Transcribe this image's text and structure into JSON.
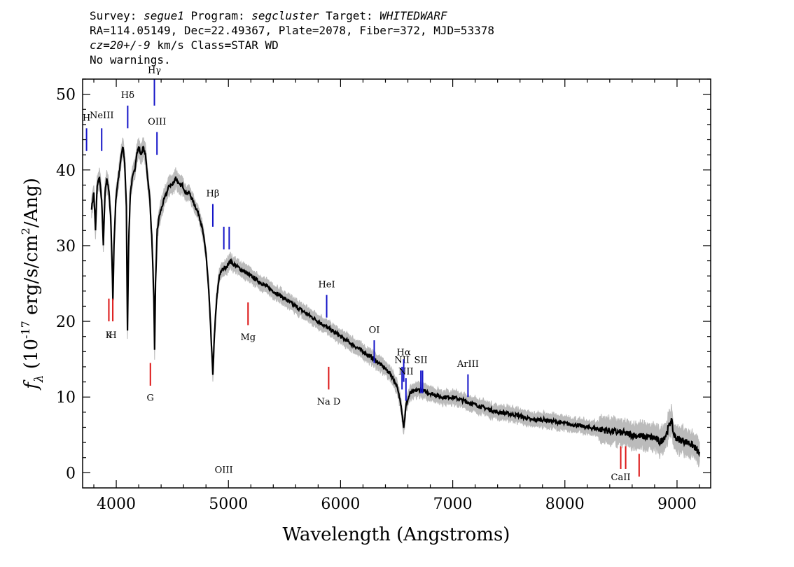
{
  "header": {
    "survey_label": "Survey:",
    "survey": "segue1",
    "program_label": "Program:",
    "program": "segcluster",
    "target_label": "Target:",
    "target": "WHITEDWARF",
    "line2": "RA=114.05149, Dec=22.49367, Plate=2078, Fiber=372, MJD=53378",
    "cz_label": "cz=20+/-9",
    "cz_rest": " km/s Class=STAR WD",
    "line4": "No warnings."
  },
  "chart_data": {
    "type": "line",
    "title": "",
    "xlabel": "Wavelength (Angstroms)",
    "ylabel_prefix": "f",
    "ylabel_sub": "λ",
    "ylabel_main": " (10",
    "ylabel_exp": "-17",
    "ylabel_rest": " erg/s/cm",
    "ylabel_exp2": "2",
    "ylabel_end": "/Ang)",
    "xlim": [
      3700,
      9300
    ],
    "ylim": [
      -2,
      52
    ],
    "xticks": [
      4000,
      5000,
      6000,
      7000,
      8000,
      9000
    ],
    "yticks": [
      0,
      10,
      20,
      30,
      40,
      50
    ],
    "xtick_labels": [
      "4000",
      "5000",
      "6000",
      "7000",
      "8000",
      "9000"
    ],
    "ytick_labels": [
      "0",
      "10",
      "20",
      "30",
      "40",
      "50"
    ],
    "grid": false,
    "colors": {
      "flux": "#000000",
      "error": "#bbbbbb",
      "emission": "#1414c8",
      "absorption": "#dc1414"
    },
    "spectrum": [
      [
        3780,
        35
      ],
      [
        3800,
        37
      ],
      [
        3815,
        32
      ],
      [
        3830,
        38
      ],
      [
        3850,
        39
      ],
      [
        3870,
        36
      ],
      [
        3885,
        30
      ],
      [
        3900,
        37
      ],
      [
        3915,
        39
      ],
      [
        3935,
        37
      ],
      [
        3950,
        34
      ],
      [
        3962,
        28
      ],
      [
        3970,
        23
      ],
      [
        3980,
        30
      ],
      [
        3995,
        36
      ],
      [
        4010,
        38
      ],
      [
        4030,
        40
      ],
      [
        4045,
        42
      ],
      [
        4060,
        43
      ],
      [
        4075,
        41
      ],
      [
        4090,
        35
      ],
      [
        4100,
        19
      ],
      [
        4110,
        30
      ],
      [
        4125,
        37
      ],
      [
        4145,
        39
      ],
      [
        4165,
        40
      ],
      [
        4180,
        42
      ],
      [
        4200,
        43
      ],
      [
        4220,
        42
      ],
      [
        4240,
        43
      ],
      [
        4260,
        42
      ],
      [
        4280,
        39
      ],
      [
        4300,
        36
      ],
      [
        4320,
        30
      ],
      [
        4335,
        23
      ],
      [
        4342,
        16
      ],
      [
        4350,
        25
      ],
      [
        4365,
        32
      ],
      [
        4385,
        34
      ],
      [
        4405,
        35
      ],
      [
        4425,
        36
      ],
      [
        4450,
        37
      ],
      [
        4475,
        38
      ],
      [
        4500,
        38
      ],
      [
        4530,
        39
      ],
      [
        4560,
        38
      ],
      [
        4590,
        38
      ],
      [
        4620,
        37
      ],
      [
        4650,
        37
      ],
      [
        4680,
        36
      ],
      [
        4710,
        35
      ],
      [
        4740,
        34
      ],
      [
        4770,
        32
      ],
      [
        4800,
        29
      ],
      [
        4825,
        24
      ],
      [
        4845,
        18
      ],
      [
        4861,
        13
      ],
      [
        4875,
        18
      ],
      [
        4895,
        23
      ],
      [
        4920,
        26
      ],
      [
        4950,
        27
      ],
      [
        4980,
        27
      ],
      [
        5010,
        28
      ],
      [
        5050,
        27.5
      ],
      [
        5100,
        27
      ],
      [
        5150,
        26.5
      ],
      [
        5200,
        26
      ],
      [
        5300,
        25
      ],
      [
        5400,
        24
      ],
      [
        5500,
        23
      ],
      [
        5600,
        22
      ],
      [
        5700,
        21
      ],
      [
        5800,
        20
      ],
      [
        5900,
        19
      ],
      [
        6000,
        18
      ],
      [
        6100,
        17
      ],
      [
        6200,
        16
      ],
      [
        6300,
        15
      ],
      [
        6380,
        14
      ],
      [
        6450,
        13
      ],
      [
        6500,
        11.5
      ],
      [
        6540,
        9
      ],
      [
        6563,
        6
      ],
      [
        6585,
        9
      ],
      [
        6620,
        10.5
      ],
      [
        6700,
        11
      ],
      [
        6800,
        10.5
      ],
      [
        6900,
        10
      ],
      [
        7000,
        10
      ],
      [
        7100,
        9.5
      ],
      [
        7200,
        9
      ],
      [
        7300,
        8.5
      ],
      [
        7400,
        8
      ],
      [
        7500,
        7.8
      ],
      [
        7600,
        7.5
      ],
      [
        7700,
        7
      ],
      [
        7800,
        7
      ],
      [
        7900,
        6.8
      ],
      [
        8000,
        6.5
      ],
      [
        8100,
        6.3
      ],
      [
        8200,
        6
      ],
      [
        8300,
        5.8
      ],
      [
        8400,
        5.5
      ],
      [
        8500,
        5.3
      ],
      [
        8600,
        5
      ],
      [
        8700,
        4.8
      ],
      [
        8800,
        4.6
      ],
      [
        8850,
        4
      ],
      [
        8900,
        5
      ],
      [
        8950,
        7
      ],
      [
        8970,
        5
      ],
      [
        9000,
        4.5
      ],
      [
        9100,
        4
      ],
      [
        9150,
        3.5
      ],
      [
        9200,
        2.5
      ]
    ],
    "emission_lines": [
      {
        "label": "H",
        "x": 3735,
        "y_low": 42.5,
        "y_high": 45.5,
        "label_y": 46.5
      },
      {
        "label": "NeIII",
        "x": 3870,
        "y_low": 42.5,
        "y_high": 45.5,
        "label_y": 46.8
      },
      {
        "label": "Hδ",
        "x": 4102,
        "y_low": 45.5,
        "y_high": 48.5,
        "label_y": 49.5
      },
      {
        "label": "Hγ",
        "x": 4340,
        "y_low": 48.5,
        "y_high": 52,
        "label_y": 52.8
      },
      {
        "label": "OIII",
        "x": 4363,
        "y_low": 42,
        "y_high": 45,
        "label_y": 46
      },
      {
        "label": "Hβ",
        "x": 4861,
        "y_low": 32.5,
        "y_high": 35.5,
        "label_y": 36.5
      },
      {
        "label": "OIII",
        "x": 4959,
        "y_low": 29.5,
        "y_high": 32.5,
        "label_y": 0
      },
      {
        "label": "",
        "x": 5007,
        "y_low": 29.5,
        "y_high": 32.5,
        "label_y": 0
      },
      {
        "label": "HeI",
        "x": 5876,
        "y_low": 20.5,
        "y_high": 23.5,
        "label_y": 24.5
      },
      {
        "label": "OI",
        "x": 6300,
        "y_low": 14.5,
        "y_high": 17.5,
        "label_y": 18.5
      },
      {
        "label": "NII",
        "x": 6548,
        "y_low": 11,
        "y_high": 14,
        "label_y": 14.5
      },
      {
        "label": "Hα",
        "x": 6563,
        "y_low": 12,
        "y_high": 15,
        "label_y": 15.5
      },
      {
        "label": "NII",
        "x": 6583,
        "y_low": 9.5,
        "y_high": 12.5,
        "label_y": 13
      },
      {
        "label": "SII",
        "x": 6716,
        "y_low": 10.5,
        "y_high": 13.5,
        "label_y": 14.5
      },
      {
        "label": "",
        "x": 6731,
        "y_low": 10.5,
        "y_high": 13.5,
        "label_y": 0
      },
      {
        "label": "ArIII",
        "x": 7136,
        "y_low": 10,
        "y_high": 13,
        "label_y": 14
      }
    ],
    "absorption_lines": [
      {
        "label": "K",
        "x": 3934,
        "y_low": 20,
        "y_high": 23,
        "label_y": 17.8
      },
      {
        "label": "H",
        "x": 3969,
        "y_low": 20,
        "y_high": 23,
        "label_y": 17.8
      },
      {
        "label": "G",
        "x": 4304,
        "y_low": 11.5,
        "y_high": 14.5,
        "label_y": 9.5
      },
      {
        "label": "Mg",
        "x": 5175,
        "y_low": 19.5,
        "y_high": 22.5,
        "label_y": 17.5
      },
      {
        "label": "Na D",
        "x": 5894,
        "y_low": 11,
        "y_high": 14,
        "label_y": 9
      },
      {
        "label": "CaII",
        "x": 8498,
        "y_low": 0.5,
        "y_high": 3.5,
        "label_y": -1
      },
      {
        "label": "",
        "x": 8542,
        "y_low": 0.5,
        "y_high": 3.5,
        "label_y": 0
      },
      {
        "label": "",
        "x": 8662,
        "y_low": -0.5,
        "y_high": 2.5,
        "label_y": 0
      }
    ]
  }
}
